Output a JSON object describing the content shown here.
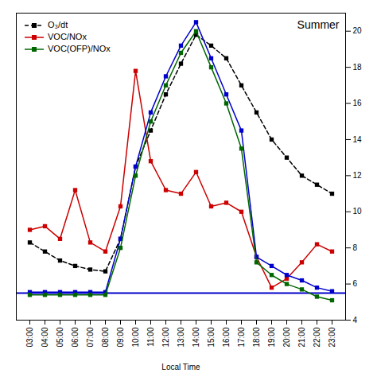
{
  "chart_data": {
    "type": "line",
    "categories": [
      "03:00",
      "04:00",
      "05:00",
      "06:00",
      "07:00",
      "08:00",
      "09:00",
      "10:00",
      "11:00",
      "12:00",
      "13:00",
      "14:00",
      "15:00",
      "16:00",
      "17:00",
      "18:00",
      "19:00",
      "20:00",
      "21:00",
      "22:00",
      "23:00"
    ],
    "xlabel": "Local Time",
    "annotations": [
      {
        "text": "Summer"
      }
    ],
    "series": [
      {
        "name": "O₃/dt",
        "color": "#000000",
        "line_style": "dashed",
        "marker": "square",
        "values": [
          8.3,
          7.8,
          7.3,
          7.0,
          6.8,
          6.7,
          8.5,
          12.5,
          14.5,
          16.5,
          18.2,
          19.8,
          19.2,
          18.5,
          17.0,
          15.5,
          14.0,
          13.0,
          12.0,
          11.5,
          11.0
        ]
      },
      {
        "name": "VOC/NOx",
        "color": "#cc0000",
        "line_style": "solid",
        "marker": "square",
        "values": [
          9.0,
          9.2,
          8.5,
          11.2,
          8.3,
          7.8,
          10.3,
          17.8,
          12.8,
          11.2,
          11.0,
          12.2,
          10.3,
          10.5,
          10.0,
          7.5,
          5.8,
          6.3,
          7.2,
          8.2,
          7.8
        ]
      },
      {
        "color": "#0000cc",
        "line_style": "solid",
        "marker": "square",
        "values": [
          5.55,
          5.55,
          5.55,
          5.55,
          5.55,
          5.55,
          8.5,
          12.5,
          15.5,
          17.5,
          19.2,
          20.5,
          18.5,
          16.5,
          14.5,
          7.5,
          7.0,
          6.5,
          6.2,
          5.8,
          5.6
        ]
      },
      {
        "name": "VOC(OFP)/NOx",
        "color": "#006600",
        "line_style": "solid",
        "marker": "square",
        "values": [
          5.4,
          5.4,
          5.4,
          5.4,
          5.4,
          5.4,
          8.0,
          12.0,
          15.0,
          17.0,
          18.8,
          20.0,
          18.0,
          16.0,
          13.5,
          7.2,
          6.5,
          6.0,
          5.7,
          5.3,
          5.1
        ]
      }
    ],
    "reference_line": {
      "y": 5.5,
      "color": "#0000cc"
    },
    "ylim": [
      4.0,
      21.0
    ],
    "yticks": [
      4,
      6,
      8,
      10,
      12,
      14,
      16,
      18,
      20
    ],
    "legend": "upper left",
    "grid": false
  }
}
